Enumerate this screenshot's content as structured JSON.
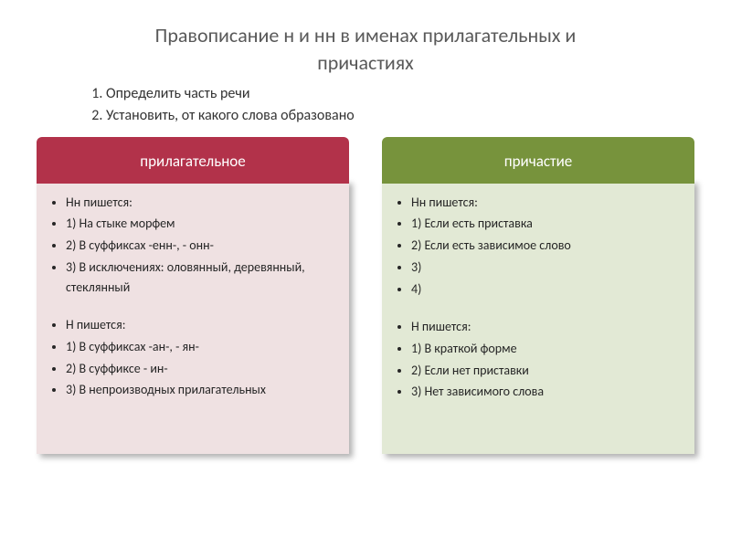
{
  "title_line1": "Правописание н и нн в именах прилагательных  и",
  "title_line2": "причастиях",
  "steps": [
    "Определить часть речи",
    "Установить, от какого слова образовано"
  ],
  "left": {
    "header": "прилагательное",
    "group1_title": "Нн пишется:",
    "group1_items": [
      "1)  На стыке морфем",
      "2) В суффиксах  -енн-, - онн-",
      "3) В исключениях:  оловянный, деревянный, стеклянный"
    ],
    "group2_title": "Н пишется:",
    "group2_items": [
      "1) В суффиксах  -ан-, - ян-",
      "2) В суффиксе  - ин-",
      "3)  В непроизводных прилагательных"
    ]
  },
  "right": {
    "header": "причастие",
    "group1_title": "Нн  пишется:",
    "group1_items": [
      "1) Если есть приставка",
      "2) Если есть зависимое слово",
      "3)",
      "4)"
    ],
    "group2_title": "Н пишется:",
    "group2_items": [
      "1) В краткой форме",
      "2) Если нет приставки",
      "3) Нет зависимого слова"
    ]
  },
  "colors": {
    "left_header": "#b2324a",
    "left_body": "#efe1e2",
    "right_header": "#77933c",
    "right_body": "#e2e9d5",
    "title_color": "#595959",
    "text_color": "#262626"
  }
}
